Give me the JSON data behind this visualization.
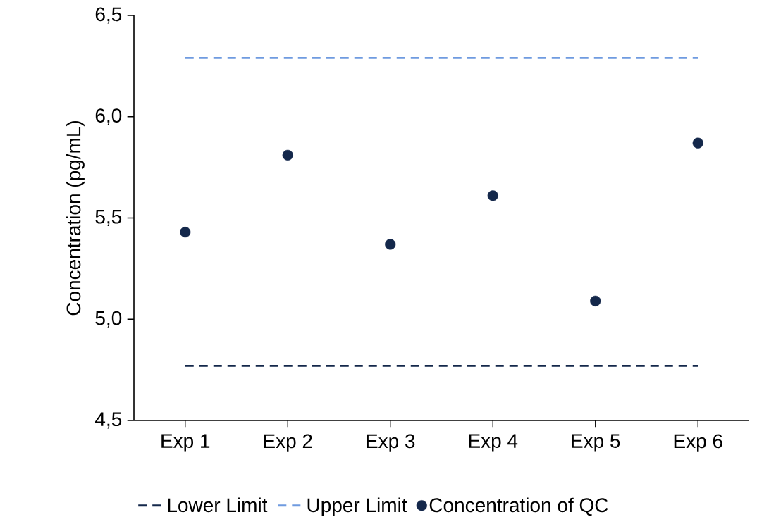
{
  "chart_data": {
    "type": "scatter",
    "ylabel": "Concentration (pg/mL)",
    "categories": [
      "Exp 1",
      "Exp 2",
      "Exp 3",
      "Exp 4",
      "Exp 5",
      "Exp 6"
    ],
    "series": [
      {
        "name": "Lower Limit",
        "type": "line",
        "color": "#14284b",
        "line_style": "dashed",
        "marker": "none",
        "values": [
          4.77,
          4.77,
          4.77,
          4.77,
          4.77,
          4.77
        ]
      },
      {
        "name": "Upper Limit",
        "type": "line",
        "color": "#6f9be0",
        "line_style": "dashed",
        "marker": "none",
        "values": [
          6.29,
          6.29,
          6.29,
          6.29,
          6.29,
          6.29
        ]
      },
      {
        "name": "Concentration of QC",
        "color": "#14284b",
        "marker": "circle",
        "values": [
          5.43,
          5.81,
          5.37,
          5.61,
          5.09,
          5.87
        ]
      }
    ],
    "ylim": [
      4.5,
      6.5
    ],
    "yticks": [
      {
        "value": 4.5,
        "label": "4,5"
      },
      {
        "value": 5.0,
        "label": "5,0"
      },
      {
        "value": 5.5,
        "label": "5,5"
      },
      {
        "value": 6.0,
        "label": "6,0"
      },
      {
        "value": 6.5,
        "label": "6,5"
      }
    ],
    "grid": false,
    "legend": "bottom"
  }
}
